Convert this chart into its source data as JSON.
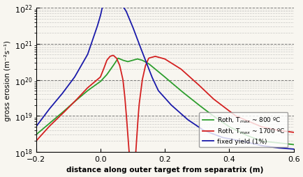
{
  "xlim": [
    -0.2,
    0.6
  ],
  "ylim": [
    1e+18,
    1e+22
  ],
  "xlabel": "distance along outer target from separatrix (m)",
  "ylabel": "gross erosion (m⁻²s⁻¹)",
  "line_colors": {
    "green": "#2d9e2d",
    "red": "#d42020",
    "blue": "#1a1aaa"
  },
  "legend_labels": [
    "Roth, T$_{max}$ ~ 800 ºC",
    "Roth, T$_{max}$ ~ 1700 ºC",
    "fixed yield (1%)"
  ],
  "bg_color": "#f8f6f0",
  "green_x": [
    -0.2,
    -0.16,
    -0.12,
    -0.08,
    -0.04,
    0.0,
    0.02,
    0.04,
    0.055,
    0.07,
    0.085,
    0.1,
    0.115,
    0.13,
    0.15,
    0.17,
    0.2,
    0.25,
    0.3,
    0.35,
    0.4,
    0.45,
    0.5,
    0.55,
    0.6
  ],
  "green_y": [
    3e+18,
    6e+18,
    1.2e+19,
    2.5e+19,
    5e+19,
    9e+19,
    1.4e+20,
    2.5e+20,
    4e+20,
    3.5e+20,
    3.2e+20,
    3.5e+20,
    3.8e+20,
    3.5e+20,
    2.8e+20,
    2e+20,
    1.2e+20,
    5e+19,
    2.2e+19,
    1e+19,
    5e+18,
    3e+18,
    2e+18,
    1.8e+18,
    1.6e+18
  ],
  "red_x": [
    -0.2,
    -0.16,
    -0.12,
    -0.08,
    -0.04,
    0.0,
    0.01,
    0.02,
    0.03,
    0.04,
    0.05,
    0.06,
    0.07,
    0.075,
    0.08,
    0.085,
    0.09,
    0.095,
    0.1,
    0.105,
    0.11,
    0.115,
    0.12,
    0.13,
    0.14,
    0.15,
    0.17,
    0.2,
    0.25,
    0.3,
    0.35,
    0.42,
    0.5,
    0.55,
    0.6
  ],
  "red_y": [
    2e+18,
    5e+18,
    1.1e+19,
    2.5e+19,
    6e+19,
    1.2e+20,
    2e+20,
    3.5e+20,
    4.5e+20,
    4.8e+20,
    4e+20,
    2.5e+20,
    1e+20,
    4e+19,
    1.2e+19,
    3e+18,
    8e+17,
    3e+17,
    1.5e+17,
    3e+17,
    1e+18,
    5e+18,
    2e+19,
    1e+20,
    2.5e+20,
    4e+20,
    4.5e+20,
    3.8e+20,
    2e+20,
    8e+19,
    3e+19,
    1e+19,
    5e+18,
    4e+18,
    3.5e+18
  ],
  "blue_x": [
    -0.2,
    -0.16,
    -0.12,
    -0.08,
    -0.04,
    -0.01,
    0.0,
    0.01,
    0.02,
    0.03,
    0.04,
    0.06,
    0.08,
    0.1,
    0.12,
    0.14,
    0.16,
    0.18,
    0.22,
    0.27,
    0.32,
    0.38,
    0.44,
    0.5,
    0.55,
    0.6
  ],
  "blue_y": [
    5e+18,
    1.5e+19,
    4e+19,
    1.2e+20,
    5e+20,
    3e+21,
    6e+21,
    1.5e+22,
    2.2e+22,
    2.5e+22,
    2.3e+22,
    1.5e+22,
    8e+21,
    3e+21,
    1e+21,
    3.5e+20,
    1.2e+20,
    5e+19,
    2e+19,
    8e+18,
    4e+18,
    2.5e+18,
    2e+18,
    1.5e+18,
    1.3e+18,
    1.2e+18
  ]
}
